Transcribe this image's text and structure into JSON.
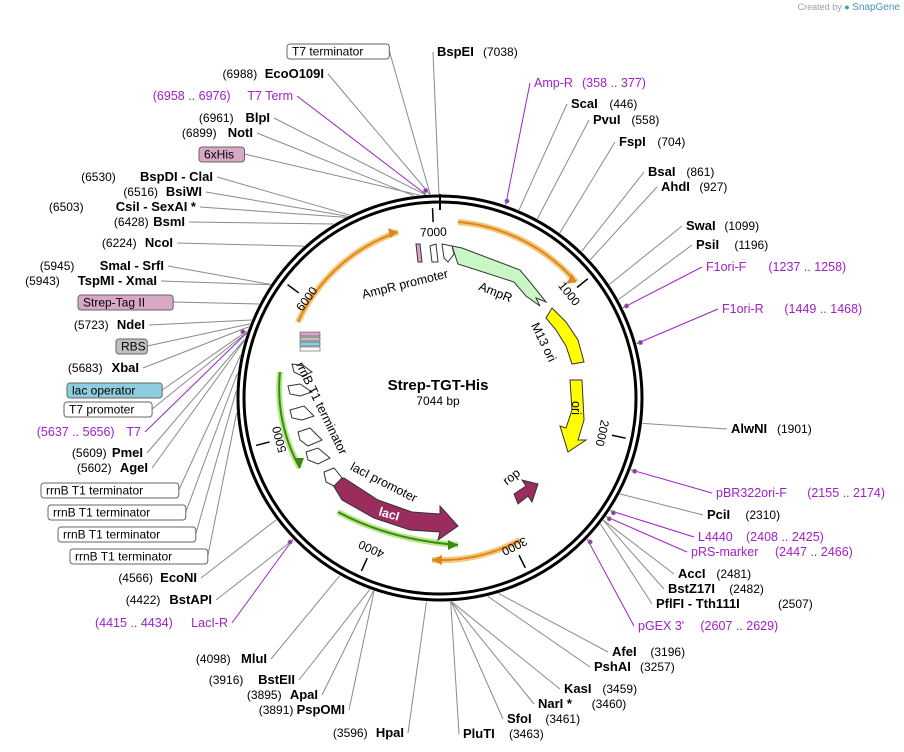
{
  "credit": {
    "prefix": "Created by",
    "brand": "SnapGene"
  },
  "plasmid": {
    "name": "Strep-TGT-His",
    "length": 7044,
    "size_text": "7044 bp"
  },
  "ticks": [
    "1000",
    "2000",
    "3000",
    "4000",
    "5000",
    "6000",
    "7000"
  ],
  "features": [
    {
      "name": "AmpR promoter",
      "color": "#ffffff"
    },
    {
      "name": "AmpR",
      "color": "#c8f7c5"
    },
    {
      "name": "M13 ori",
      "color": "#ffff00"
    },
    {
      "name": "ori",
      "color": "#ffff00"
    },
    {
      "name": "rop",
      "color": "#9b2d5e"
    },
    {
      "name": "lacI",
      "color": "#9b2d5e"
    },
    {
      "name": "lacI promoter",
      "color": "#ffffff"
    },
    {
      "name": "rrnB T1 terminator",
      "color": "#ffffff"
    }
  ],
  "right_sites": [
    {
      "name": "BspEI",
      "pos": "(7038)"
    },
    {
      "name": "ScaI",
      "pos": "(446)"
    },
    {
      "name": "PvuI",
      "pos": "(558)"
    },
    {
      "name": "FspI",
      "pos": "(704)"
    },
    {
      "name": "BsaI",
      "pos": "(861)"
    },
    {
      "name": "AhdI",
      "pos": "(927)"
    },
    {
      "name": "SwaI",
      "pos": "(1099)"
    },
    {
      "name": "PsiI",
      "pos": "(1196)"
    },
    {
      "name": "AlwNI",
      "pos": "(1901)"
    },
    {
      "name": "PciI",
      "pos": "(2310)"
    },
    {
      "name": "AccI",
      "pos": "(2481)"
    },
    {
      "name": "BstZ17I",
      "pos": "(2482)"
    },
    {
      "name": "PflFI - Tth111I",
      "pos": "(2507)"
    },
    {
      "name": "AfeI",
      "pos": "(3196)"
    },
    {
      "name": "PshAI",
      "pos": "(3257)"
    },
    {
      "name": "KasI",
      "pos": "(3459)"
    },
    {
      "name": "NarI *",
      "pos": "(3460)"
    },
    {
      "name": "SfoI",
      "pos": "(3461)"
    },
    {
      "name": "PluTI",
      "pos": "(3463)"
    }
  ],
  "left_sites": [
    {
      "name": "EcoO109I",
      "pos": "(6988)"
    },
    {
      "name": "BlpI",
      "pos": "(6961)"
    },
    {
      "name": "NotI",
      "pos": "(6899)"
    },
    {
      "name": "BspDI - ClaI",
      "pos": "(6530)"
    },
    {
      "name": "BsiWI",
      "pos": "(6516)"
    },
    {
      "name": "CsiI - SexAI *",
      "pos": "(6503)"
    },
    {
      "name": "BsmI",
      "pos": "(6428)"
    },
    {
      "name": "NcoI",
      "pos": "(6224)"
    },
    {
      "name": "SmaI - SrfI",
      "pos": "(5945)"
    },
    {
      "name": "TspMI - XmaI",
      "pos": "(5943)"
    },
    {
      "name": "NdeI",
      "pos": "(5723)"
    },
    {
      "name": "XbaI",
      "pos": "(5683)"
    },
    {
      "name": "PmeI",
      "pos": "(5609)"
    },
    {
      "name": "AgeI",
      "pos": "(5602)"
    },
    {
      "name": "EcoNI",
      "pos": "(4566)"
    },
    {
      "name": "BstAPI",
      "pos": "(4422)"
    },
    {
      "name": "MluI",
      "pos": "(4098)"
    },
    {
      "name": "BstEII",
      "pos": "(3916)"
    },
    {
      "name": "ApaI",
      "pos": "(3895)"
    },
    {
      "name": "PspOMI",
      "pos": "(3891)"
    },
    {
      "name": "HpaI",
      "pos": "(3596)"
    }
  ],
  "primers": [
    {
      "name": "Amp-R",
      "range": "(358 .. 377)"
    },
    {
      "name": "F1ori-F",
      "range": "(1237 .. 1258)"
    },
    {
      "name": "F1ori-R",
      "range": "(1449 .. 1468)"
    },
    {
      "name": "pBR322ori-F",
      "range": "(2155 .. 2174)"
    },
    {
      "name": "L4440",
      "range": "(2408 .. 2425)"
    },
    {
      "name": "pRS-marker",
      "range": "(2447 .. 2466)"
    },
    {
      "name": "pGEX 3'",
      "range": "(2607 .. 2629)"
    },
    {
      "name": "LacI-R",
      "range": "(4415 .. 4434)"
    },
    {
      "name": "T7",
      "range": "(5637 .. 5656)"
    },
    {
      "name": "T7 Term",
      "range": "(6958 .. 6976)"
    }
  ],
  "boxes": [
    {
      "name": "T7 terminator",
      "fill": "#ffffff"
    },
    {
      "name": "6xHis",
      "fill": "#d9a7c7"
    },
    {
      "name": "Strep-Tag II",
      "fill": "#d9a7c7"
    },
    {
      "name": "RBS",
      "fill": "#c0c0c0"
    },
    {
      "name": "lac operator",
      "fill": "#8ecde0"
    },
    {
      "name": "T7 promoter",
      "fill": "#ffffff"
    },
    {
      "name": "rrnB T1 terminator",
      "fill": "#ffffff"
    },
    {
      "name": "rrnB T1 terminator",
      "fill": "#ffffff"
    },
    {
      "name": "rrnB T1 terminator",
      "fill": "#ffffff"
    },
    {
      "name": "rrnB T1 terminator",
      "fill": "#ffffff"
    }
  ]
}
